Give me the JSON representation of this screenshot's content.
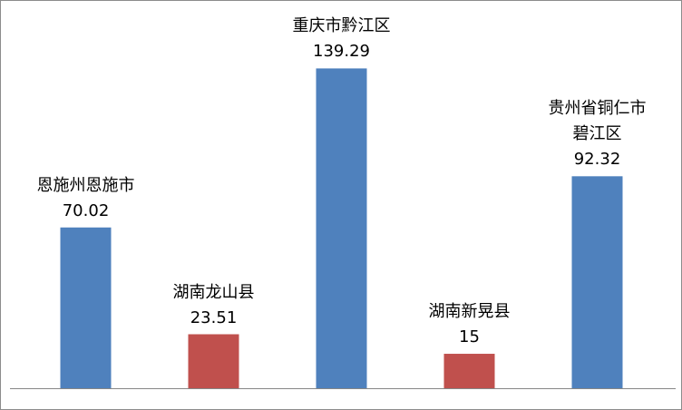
{
  "chart_data": {
    "type": "bar",
    "categories": [
      "恩施州恩施市",
      "湖南龙山县",
      "重庆市黔江区",
      "湖南新晃县",
      "贵州省铜仁市碧江区"
    ],
    "values": [
      70.02,
      23.51,
      139.29,
      15,
      92.32
    ],
    "colors": [
      "#4f81bd",
      "#c0504d",
      "#4f81bd",
      "#c0504d",
      "#4f81bd"
    ],
    "ylim": [
      0,
      160
    ]
  }
}
